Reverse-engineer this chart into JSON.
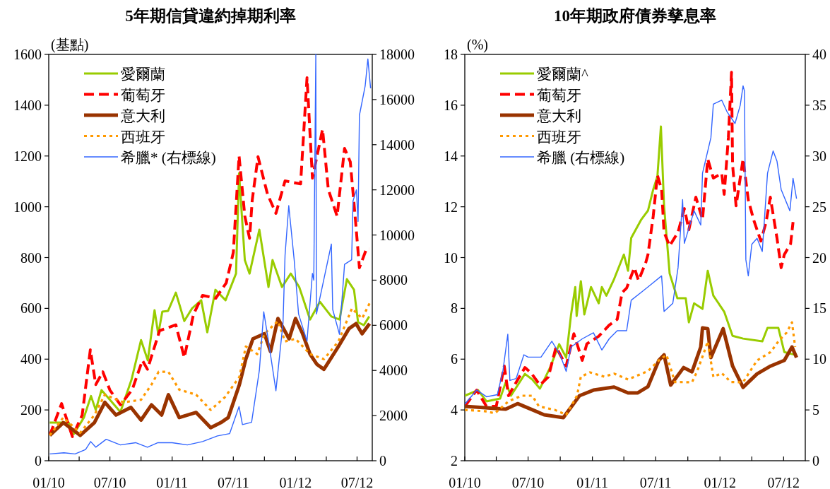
{
  "chart_data": [
    {
      "type": "line",
      "title": "5年期信貸違約掉期利率",
      "ylabel": "(基點)",
      "legend": "top left",
      "xlim": [
        "2010-01-01",
        "2012-08-15"
      ],
      "xticks": [
        {
          "value": "2010-01-01",
          "label": "01/10"
        },
        {
          "value": "2010-04-01",
          "label": null
        },
        {
          "value": "2010-07-01",
          "label": "07/10"
        },
        {
          "value": "2010-10-01",
          "label": null
        },
        {
          "value": "2011-01-01",
          "label": "01/11"
        },
        {
          "value": "2011-04-01",
          "label": null
        },
        {
          "value": "2011-07-01",
          "label": "07/11"
        },
        {
          "value": "2011-10-01",
          "label": null
        },
        {
          "value": "2012-01-01",
          "label": "01/12"
        },
        {
          "value": "2012-04-01",
          "label": null
        },
        {
          "value": "2012-07-01",
          "label": "07/12"
        }
      ],
      "ylim": [
        0,
        1600
      ],
      "yticks": [
        0,
        200,
        400,
        600,
        800,
        1000,
        1200,
        1400,
        1600
      ],
      "y2lim": [
        0,
        18000
      ],
      "y2ticks": [
        0,
        2000,
        4000,
        6000,
        8000,
        10000,
        12000,
        14000,
        16000,
        18000
      ],
      "series": [
        {
          "name": "愛爾蘭",
          "color": "#99cc00",
          "line_style": "solid",
          "x": [
            "2010-01-04",
            "2010-03-01",
            "2010-03-16",
            "2010-04-15",
            "2010-05-06",
            "2010-05-20",
            "2010-06-06",
            "2010-07-01",
            "2010-08-01",
            "2010-09-03",
            "2010-10-01",
            "2010-10-21",
            "2010-11-10",
            "2010-11-21",
            "2010-12-03",
            "2010-12-20",
            "2011-01-12",
            "2011-02-06",
            "2011-03-01",
            "2011-03-28",
            "2011-04-15",
            "2011-05-09",
            "2011-06-08",
            "2011-07-09",
            "2011-07-18",
            "2011-08-04",
            "2011-08-18",
            "2011-09-16",
            "2011-10-13",
            "2011-10-25",
            "2011-11-22",
            "2011-12-18",
            "2012-01-12",
            "2012-02-13",
            "2012-03-13",
            "2012-04-16",
            "2012-05-10",
            "2012-06-01",
            "2012-06-22",
            "2012-07-04",
            "2012-07-21",
            "2012-08-06"
          ],
          "values": [
            150,
            150,
            105,
            170,
            255,
            200,
            278,
            240,
            192,
            320,
            475,
            395,
            593,
            498,
            587,
            590,
            662,
            550,
            600,
            632,
            506,
            673,
            632,
            737,
            1132,
            790,
            737,
            910,
            684,
            790,
            684,
            737,
            684,
            556,
            626,
            568,
            556,
            715,
            673,
            545,
            534,
            568
          ]
        },
        {
          "name": "葡萄牙",
          "color": "#ff0000",
          "line_style": "dashed",
          "x": [
            "2010-01-04",
            "2010-02-08",
            "2010-03-12",
            "2010-04-10",
            "2010-05-04",
            "2010-05-20",
            "2010-06-10",
            "2010-07-01",
            "2010-08-01",
            "2010-09-05",
            "2010-10-05",
            "2010-10-20",
            "2010-11-25",
            "2011-01-12",
            "2011-02-06",
            "2011-03-05",
            "2011-04-01",
            "2011-05-10",
            "2011-06-10",
            "2011-07-01",
            "2011-07-18",
            "2011-08-04",
            "2011-08-18",
            "2011-08-26",
            "2011-09-12",
            "2011-10-10",
            "2011-11-04",
            "2011-12-01",
            "2012-01-16",
            "2012-02-04",
            "2012-02-20",
            "2012-03-21",
            "2012-04-07",
            "2012-05-03",
            "2012-05-25",
            "2012-06-11",
            "2012-06-26",
            "2012-07-08",
            "2012-07-29",
            "2012-08-06"
          ],
          "values": [
            100,
            225,
            95,
            180,
            437,
            300,
            350,
            278,
            220,
            280,
            395,
            360,
            512,
            535,
            406,
            576,
            651,
            640,
            700,
            820,
            1200,
            963,
            876,
            1027,
            1197,
            1050,
            974,
            1102,
            1090,
            1508,
            1113,
            1305,
            1068,
            963,
            1230,
            1177,
            952,
            760,
            835,
            835
          ]
        },
        {
          "name": "意大利",
          "color": "#993300",
          "line_style": "solid",
          "x": [
            "2010-01-04",
            "2010-02-13",
            "2010-04-04",
            "2010-05-16",
            "2010-06-16",
            "2010-07-19",
            "2010-09-01",
            "2010-10-01",
            "2010-11-01",
            "2010-12-01",
            "2010-12-21",
            "2011-01-22",
            "2011-03-13",
            "2011-04-25",
            "2011-05-25",
            "2011-06-16",
            "2011-07-19",
            "2011-08-07",
            "2011-08-28",
            "2011-10-01",
            "2011-10-19",
            "2011-11-10",
            "2011-12-13",
            "2012-01-01",
            "2012-01-22",
            "2012-02-13",
            "2012-03-04",
            "2012-03-25",
            "2012-05-07",
            "2012-06-07",
            "2012-06-28",
            "2012-07-16",
            "2012-08-07"
          ],
          "values": [
            100,
            150,
            100,
            150,
            230,
            180,
            210,
            160,
            220,
            180,
            260,
            170,
            190,
            130,
            150,
            170,
            300,
            400,
            480,
            500,
            430,
            560,
            480,
            560,
            500,
            420,
            380,
            360,
            450,
            520,
            540,
            500,
            540
          ]
        },
        {
          "name": "西班牙",
          "color": "#ff9900",
          "line_style": "dotted",
          "x": [
            "2010-01-04",
            "2010-02-13",
            "2010-04-04",
            "2010-05-16",
            "2010-06-16",
            "2010-08-10",
            "2010-10-01",
            "2010-11-01",
            "2010-11-22",
            "2010-12-21",
            "2011-01-22",
            "2011-03-13",
            "2011-04-25",
            "2011-06-06",
            "2011-07-19",
            "2011-08-07",
            "2011-09-10",
            "2011-10-01",
            "2011-11-10",
            "2011-12-01",
            "2012-01-01",
            "2012-02-13",
            "2012-03-25",
            "2012-05-07",
            "2012-06-16",
            "2012-07-16",
            "2012-08-07"
          ],
          "values": [
            100,
            170,
            110,
            180,
            260,
            230,
            240,
            300,
            350,
            350,
            280,
            260,
            200,
            250,
            330,
            450,
            420,
            500,
            550,
            470,
            480,
            420,
            400,
            470,
            600,
            560,
            620
          ]
        },
        {
          "name": "希臘* (右標線)",
          "color": "#3366ff",
          "line_style": "solid",
          "axis": "y2",
          "x": [
            "2010-01-04",
            "2010-02-15",
            "2010-03-20",
            "2010-04-20",
            "2010-05-05",
            "2010-05-20",
            "2010-06-20",
            "2010-08-01",
            "2010-09-15",
            "2010-10-20",
            "2010-11-20",
            "2011-01-01",
            "2011-02-15",
            "2011-04-01",
            "2011-05-15",
            "2011-06-20",
            "2011-07-18",
            "2011-07-28",
            "2011-08-24",
            "2011-09-16",
            "2011-09-29",
            "2011-10-13",
            "2011-11-04",
            "2011-11-25",
            "2011-12-01",
            "2011-12-12",
            "2011-12-28",
            "2012-01-10",
            "2012-02-04",
            "2012-02-20",
            "2012-02-24",
            "2012-03-01",
            "2012-03-03",
            "2012-04-16",
            "2012-04-20",
            "2012-05-10",
            "2012-05-25",
            "2012-06-15",
            "2012-06-19",
            "2012-06-29",
            "2012-07-04",
            "2012-07-08",
            "2012-07-25",
            "2012-08-02",
            "2012-08-10"
          ],
          "values": [
            300,
            350,
            300,
            500,
            850,
            600,
            950,
            700,
            800,
            600,
            800,
            800,
            700,
            850,
            1100,
            1200,
            2400,
            1600,
            1700,
            4000,
            6600,
            5300,
            3100,
            6100,
            9100,
            11300,
            8900,
            6500,
            5300,
            8300,
            8000,
            18000,
            6500,
            9600,
            6700,
            5600,
            8700,
            8900,
            11500,
            12000,
            10600,
            15300,
            16600,
            17800,
            16500
          ]
        }
      ]
    },
    {
      "type": "line",
      "title": "10年期政府債券孳息率",
      "ylabel": "(%)",
      "legend": "top left",
      "xlim": [
        "2010-01-01",
        "2012-09-01"
      ],
      "xticks": [
        {
          "value": "2010-01-01",
          "label": "01/10"
        },
        {
          "value": "2010-04-01",
          "label": null
        },
        {
          "value": "2010-07-01",
          "label": "07/10"
        },
        {
          "value": "2010-10-01",
          "label": null
        },
        {
          "value": "2011-01-01",
          "label": "01/11"
        },
        {
          "value": "2011-04-01",
          "label": null
        },
        {
          "value": "2011-07-01",
          "label": "07/11"
        },
        {
          "value": "2011-10-01",
          "label": null
        },
        {
          "value": "2012-01-01",
          "label": "01/12"
        },
        {
          "value": "2012-04-01",
          "label": null
        },
        {
          "value": "2012-07-01",
          "label": "07/12"
        }
      ],
      "ylim": [
        2,
        18
      ],
      "yticks": [
        2,
        4,
        6,
        8,
        10,
        12,
        14,
        16,
        18
      ],
      "y2lim": [
        0,
        40
      ],
      "y2ticks": [
        0,
        5,
        10,
        15,
        20,
        25,
        30,
        35,
        40
      ],
      "series": [
        {
          "name": "愛爾蘭^",
          "color": "#99cc00",
          "line_style": "solid",
          "x": [
            "2010-01-01",
            "2010-02-08",
            "2010-03-04",
            "2010-04-12",
            "2010-04-28",
            "2010-05-13",
            "2010-06-22",
            "2010-07-13",
            "2010-08-04",
            "2010-09-01",
            "2010-09-28",
            "2010-10-18",
            "2010-11-01",
            "2010-11-13",
            "2010-11-17",
            "2010-11-29",
            "2010-12-09",
            "2010-12-28",
            "2011-01-19",
            "2011-01-28",
            "2011-02-10",
            "2011-03-04",
            "2011-04-01",
            "2011-04-13",
            "2011-04-22",
            "2011-05-21",
            "2011-06-09",
            "2011-06-24",
            "2011-07-06",
            "2011-07-16",
            "2011-07-25",
            "2011-08-10",
            "2011-09-01",
            "2011-09-25",
            "2011-10-04",
            "2011-10-19",
            "2011-11-12",
            "2011-11-27",
            "2011-12-13",
            "2012-01-13",
            "2012-02-06",
            "2012-03-07",
            "2012-05-01",
            "2012-05-16",
            "2012-06-16",
            "2012-07-03",
            "2012-08-03"
          ],
          "values": [
            4.56,
            4.78,
            4.34,
            4.45,
            5.09,
            4.56,
            5.42,
            5.2,
            4.84,
            5.64,
            6.59,
            6.06,
            7.76,
            8.84,
            7.7,
            9.07,
            7.76,
            8.84,
            8.2,
            8.84,
            8.5,
            9.15,
            10.12,
            9.48,
            10.77,
            11.5,
            11.85,
            12.68,
            13.2,
            15.16,
            12.04,
            9.37,
            8.4,
            8.4,
            7.45,
            8.2,
            7.98,
            9.48,
            8.5,
            7.87,
            6.92,
            6.81,
            6.7,
            7.23,
            7.23,
            6.28,
            6.17
          ]
        },
        {
          "name": "葡萄牙",
          "color": "#ff0000",
          "line_style": "dashed",
          "x": [
            "2010-01-01",
            "2010-02-04",
            "2010-03-04",
            "2010-04-01",
            "2010-04-24",
            "2010-05-06",
            "2010-05-28",
            "2010-06-22",
            "2010-07-10",
            "2010-08-04",
            "2010-08-28",
            "2010-09-19",
            "2010-10-18",
            "2010-11-09",
            "2010-12-03",
            "2010-12-16",
            "2011-01-19",
            "2011-02-18",
            "2011-03-13",
            "2011-03-27",
            "2011-04-09",
            "2011-05-01",
            "2011-05-13",
            "2011-06-03",
            "2011-06-09",
            "2011-06-24",
            "2011-07-06",
            "2011-07-18",
            "2011-07-25",
            "2011-08-10",
            "2011-09-03",
            "2011-09-21",
            "2011-10-04",
            "2011-10-24",
            "2011-11-12",
            "2011-11-27",
            "2011-12-13",
            "2012-01-06",
            "2012-01-13",
            "2012-01-25",
            "2012-02-03",
            "2012-02-06",
            "2012-02-16",
            "2012-03-07",
            "2012-03-22",
            "2012-04-06",
            "2012-04-27",
            "2012-05-12",
            "2012-05-24",
            "2012-06-12",
            "2012-06-24",
            "2012-07-03",
            "2012-07-21",
            "2012-07-28"
          ],
          "values": [
            4.14,
            4.78,
            4.14,
            4.14,
            5.73,
            4.56,
            5.09,
            5.67,
            5.45,
            4.98,
            5.3,
            6.48,
            5.73,
            7.0,
            5.95,
            6.6,
            6.9,
            7.34,
            7.57,
            8.62,
            8.8,
            9.6,
            9.1,
            9.82,
            10.12,
            11.63,
            13.24,
            12.68,
            11.0,
            10.46,
            11.0,
            11.93,
            11.1,
            12.38,
            11.5,
            13.88,
            13.13,
            13.32,
            12.49,
            14.72,
            17.3,
            13.66,
            12.04,
            13.88,
            12.27,
            11.5,
            10.65,
            11.4,
            12.38,
            10.77,
            9.6,
            10.12,
            10.54,
            11.4
          ]
        },
        {
          "name": "意大利",
          "color": "#993300",
          "line_style": "solid",
          "x": [
            "2010-01-01",
            "2010-04-28",
            "2010-06-01",
            "2010-08-16",
            "2010-10-10",
            "2010-11-25",
            "2011-01-04",
            "2011-03-04",
            "2011-04-13",
            "2011-05-10",
            "2011-06-09",
            "2011-07-10",
            "2011-07-25",
            "2011-08-13",
            "2011-09-19",
            "2011-10-13",
            "2011-11-07",
            "2011-11-12",
            "2011-11-27",
            "2011-12-06",
            "2012-01-10",
            "2012-02-06",
            "2012-03-07",
            "2012-04-16",
            "2012-05-25",
            "2012-07-03",
            "2012-07-25",
            "2012-08-07"
          ],
          "values": [
            4.14,
            4.03,
            4.25,
            3.81,
            3.7,
            4.56,
            4.78,
            4.9,
            4.67,
            4.67,
            4.92,
            5.95,
            6.17,
            4.98,
            5.67,
            5.5,
            6.48,
            7.23,
            7.2,
            6.06,
            7.2,
            5.73,
            4.89,
            5.42,
            5.73,
            5.95,
            6.48,
            6.06
          ]
        },
        {
          "name": "西班牙",
          "color": "#ff9900",
          "line_style": "dotted",
          "x": [
            "2010-01-01",
            "2010-02-28",
            "2010-03-28",
            "2010-05-06",
            "2010-06-13",
            "2010-07-13",
            "2010-08-01",
            "2010-09-16",
            "2010-10-18",
            "2010-11-18",
            "2010-11-29",
            "2010-12-25",
            "2011-02-04",
            "2011-03-04",
            "2011-04-13",
            "2011-06-09",
            "2011-07-10",
            "2011-08-01",
            "2011-08-25",
            "2011-10-13",
            "2011-10-28",
            "2011-11-19",
            "2011-11-27",
            "2011-12-13",
            "2012-01-06",
            "2012-02-01",
            "2012-03-07",
            "2012-04-16",
            "2012-05-25",
            "2012-06-16",
            "2012-07-10",
            "2012-07-25",
            "2012-08-03"
          ],
          "values": [
            4.0,
            3.95,
            3.87,
            4.34,
            4.56,
            4.56,
            4.14,
            4.0,
            3.81,
            4.56,
            5.31,
            5.48,
            5.31,
            5.43,
            5.2,
            5.53,
            5.95,
            6.17,
            5.1,
            5.09,
            5.53,
            6.37,
            6.7,
            5.3,
            5.45,
            5.1,
            5.09,
            5.95,
            6.28,
            6.7,
            7.05,
            7.45,
            6.48
          ]
        },
        {
          "name": "希臘 (右標線)",
          "color": "#3366ff",
          "line_style": "solid",
          "axis": "y2",
          "x": [
            "2010-01-01",
            "2010-02-04",
            "2010-03-04",
            "2010-04-04",
            "2010-04-20",
            "2010-05-04",
            "2010-05-10",
            "2010-05-28",
            "2010-06-19",
            "2010-07-01",
            "2010-08-07",
            "2010-09-07",
            "2010-10-01",
            "2010-10-18",
            "2010-11-01",
            "2010-12-03",
            "2011-01-04",
            "2011-01-28",
            "2011-02-18",
            "2011-03-13",
            "2011-04-09",
            "2011-04-22",
            "2011-05-25",
            "2011-06-16",
            "2011-07-18",
            "2011-07-25",
            "2011-08-19",
            "2011-09-03",
            "2011-09-16",
            "2011-09-21",
            "2011-10-19",
            "2011-11-07",
            "2011-11-12",
            "2011-12-06",
            "2011-12-13",
            "2012-01-06",
            "2012-01-22",
            "2012-02-13",
            "2012-02-28",
            "2012-03-07",
            "2012-03-11",
            "2012-03-15",
            "2012-03-22",
            "2012-04-01",
            "2012-04-16",
            "2012-05-01",
            "2012-05-16",
            "2012-06-01",
            "2012-06-12",
            "2012-06-24",
            "2012-07-19",
            "2012-07-28",
            "2012-08-07"
          ],
          "values": [
            5.57,
            6.96,
            6.3,
            6.5,
            8.83,
            12.45,
            7.9,
            8.1,
            10.43,
            10.2,
            10.2,
            11.76,
            10.4,
            8.8,
            11.2,
            12.0,
            12.6,
            10.9,
            12.0,
            12.8,
            12.8,
            15.8,
            16.7,
            17.3,
            18.2,
            14.7,
            15.5,
            19.0,
            25.7,
            21.4,
            24.6,
            23.2,
            28.3,
            31.8,
            35.1,
            35.5,
            34.3,
            33.2,
            35.0,
            36.9,
            36.4,
            19.8,
            18.2,
            21.3,
            21.9,
            20.6,
            28.3,
            30.5,
            29.5,
            26.7,
            24.6,
            27.8,
            25.8
          ]
        }
      ]
    }
  ]
}
